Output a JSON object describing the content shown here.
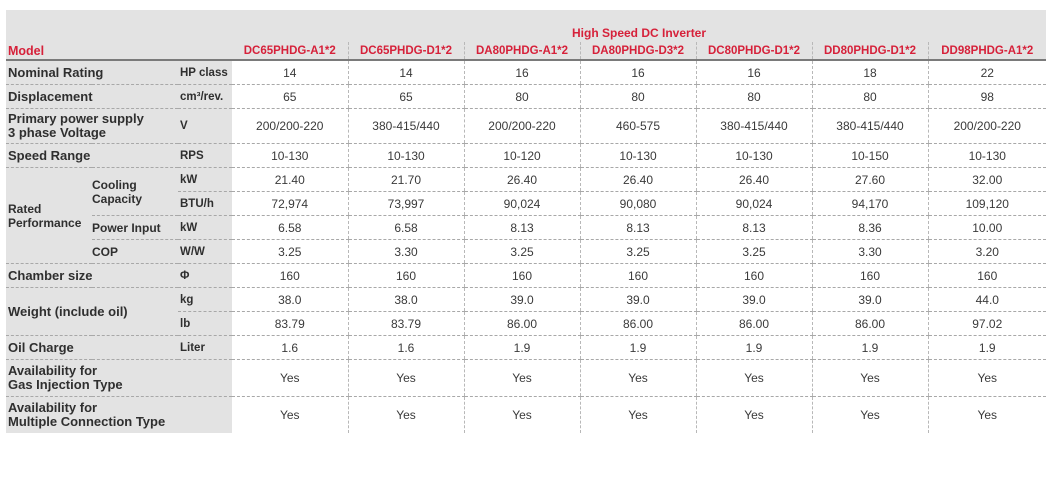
{
  "header": {
    "title": "High Speed DC Inverter",
    "model_label": "Model",
    "models": [
      "DC65PHDG-A1*2",
      "DC65PHDG-D1*2",
      "DA80PHDG-A1*2",
      "DA80PHDG-D3*2",
      "DC80PHDG-D1*2",
      "DD80PHDG-D1*2",
      "DD98PHDG-A1*2"
    ]
  },
  "rows": {
    "nominal": {
      "label": "Nominal Rating",
      "unit": "HP class",
      "values": [
        "14",
        "14",
        "16",
        "16",
        "16",
        "18",
        "22"
      ]
    },
    "displacement": {
      "label": "Displacement",
      "unit": "cm³/rev.",
      "values": [
        "65",
        "65",
        "80",
        "80",
        "80",
        "80",
        "98"
      ]
    },
    "power_supply": {
      "label1": "Primary power supply",
      "label2": "3 phase Voltage",
      "unit": "V",
      "values": [
        "200/200-220",
        "380-415/440",
        "200/200-220",
        "460-575",
        "380-415/440",
        "380-415/440",
        "200/200-220"
      ]
    },
    "speed": {
      "label": "Speed Range",
      "unit": "RPS",
      "values": [
        "10-130",
        "10-130",
        "10-120",
        "10-130",
        "10-130",
        "10-150",
        "10-130"
      ]
    },
    "rated": {
      "label1": "Rated",
      "label2": "Performance",
      "cooling_label1": "Cooling",
      "cooling_label2": "Capacity",
      "kw": {
        "unit": "kW",
        "values": [
          "21.40",
          "21.70",
          "26.40",
          "26.40",
          "26.40",
          "27.60",
          "32.00"
        ]
      },
      "btu": {
        "unit": "BTU/h",
        "values": [
          "72,974",
          "73,997",
          "90,024",
          "90,080",
          "90,024",
          "94,170",
          "109,120"
        ]
      },
      "power": {
        "label": "Power Input",
        "unit": "kW",
        "values": [
          "6.58",
          "6.58",
          "8.13",
          "8.13",
          "8.13",
          "8.36",
          "10.00"
        ]
      },
      "cop": {
        "label": "COP",
        "unit": "W/W",
        "values": [
          "3.25",
          "3.30",
          "3.25",
          "3.25",
          "3.25",
          "3.30",
          "3.20"
        ]
      }
    },
    "chamber": {
      "label": "Chamber size",
      "unit": "Φ",
      "values": [
        "160",
        "160",
        "160",
        "160",
        "160",
        "160",
        "160"
      ]
    },
    "weight": {
      "label": "Weight (include oil)",
      "kg": {
        "unit": "kg",
        "values": [
          "38.0",
          "38.0",
          "39.0",
          "39.0",
          "39.0",
          "39.0",
          "44.0"
        ]
      },
      "lb": {
        "unit": "lb",
        "values": [
          "83.79",
          "83.79",
          "86.00",
          "86.00",
          "86.00",
          "86.00",
          "97.02"
        ]
      }
    },
    "oil": {
      "label": "Oil Charge",
      "unit": "Liter",
      "values": [
        "1.6",
        "1.6",
        "1.9",
        "1.9",
        "1.9",
        "1.9",
        "1.9"
      ]
    },
    "gas": {
      "label1": "Availability for",
      "label2": "Gas Injection Type",
      "values": [
        "Yes",
        "Yes",
        "Yes",
        "Yes",
        "Yes",
        "Yes",
        "Yes"
      ]
    },
    "multi": {
      "label1": "Availability for",
      "label2": "Multiple Connection Type",
      "values": [
        "Yes",
        "Yes",
        "Yes",
        "Yes",
        "Yes",
        "Yes",
        "Yes"
      ]
    }
  }
}
